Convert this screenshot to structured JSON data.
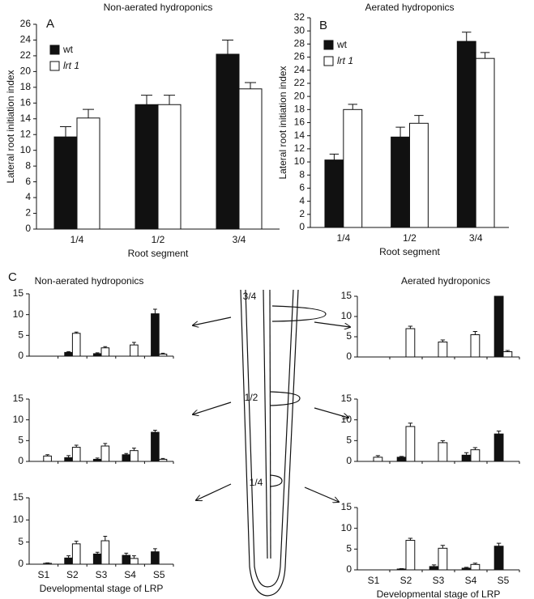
{
  "chart_data": [
    {
      "type": "bar",
      "panel": "A",
      "title": "Non-aerated hydroponics",
      "y_label": "Lateral root initiation index",
      "x_label": "Root segment",
      "categories": [
        "1/4",
        "1/2",
        "3/4"
      ],
      "ylim": [
        0,
        26
      ],
      "yticks": [
        0,
        2,
        4,
        6,
        8,
        10,
        12,
        14,
        16,
        18,
        20,
        22,
        24,
        26
      ],
      "legend": "upper left",
      "series": [
        {
          "name": "wt",
          "color": "#111111",
          "values": [
            11.7,
            15.8,
            22.2
          ],
          "errors": [
            1.3,
            1.2,
            1.8
          ]
        },
        {
          "name": "lrt 1",
          "color": "#ffffff",
          "values": [
            14.1,
            15.8,
            17.8
          ],
          "errors": [
            1.1,
            1.2,
            0.8
          ]
        }
      ]
    },
    {
      "type": "bar",
      "panel": "B",
      "title": "Aerated hydroponics",
      "y_label": "Lateral root initiation index",
      "x_label": "Root segment",
      "categories": [
        "1/4",
        "1/2",
        "3/4"
      ],
      "ylim": [
        0,
        32
      ],
      "yticks": [
        0,
        2,
        4,
        6,
        8,
        10,
        12,
        14,
        16,
        18,
        20,
        22,
        24,
        26,
        28,
        30,
        32
      ],
      "legend": "upper left",
      "series": [
        {
          "name": "wt",
          "color": "#111111",
          "values": [
            10.3,
            13.8,
            28.4
          ],
          "errors": [
            0.9,
            1.5,
            1.4
          ]
        },
        {
          "name": "lrt 1",
          "color": "#ffffff",
          "values": [
            18.0,
            15.9,
            25.8
          ],
          "errors": [
            0.8,
            1.2,
            0.9
          ]
        }
      ]
    },
    {
      "type": "bar",
      "panel": "C",
      "title": "Non-aerated hydroponics",
      "categories": [
        null,
        null,
        null,
        null,
        null
      ],
      "ylim": [
        0,
        15
      ],
      "yticks": [
        0,
        5,
        10,
        15
      ],
      "series": [
        {
          "color": "#111111",
          "values": [
            0,
            0.9,
            0.6,
            0,
            10.2
          ],
          "errors": [
            0,
            0.2,
            0.2,
            0,
            1.1
          ]
        },
        {
          "color": "#ffffff",
          "values": [
            0,
            5.5,
            2.0,
            2.7,
            0.5
          ],
          "errors": [
            0,
            0.3,
            0.3,
            0.6,
            0.2
          ]
        }
      ]
    },
    {
      "type": "bar",
      "categories": [
        null,
        null,
        null,
        null,
        null
      ],
      "ylim": [
        0,
        15
      ],
      "yticks": [
        0,
        5,
        10,
        15
      ],
      "series": [
        {
          "color": "#111111",
          "values": [
            0,
            0.9,
            0.5,
            1.6,
            7.0
          ],
          "errors": [
            0,
            0.5,
            0.3,
            0.3,
            0.5
          ]
        },
        {
          "color": "#ffffff",
          "values": [
            1.3,
            3.4,
            3.7,
            2.6,
            0.5
          ],
          "errors": [
            0.3,
            0.5,
            0.6,
            0.6,
            0.2
          ]
        }
      ]
    },
    {
      "type": "bar",
      "x_label": "Developmental stage of LRP",
      "categories": [
        "S1",
        "S2",
        "S3",
        "S4",
        "S5"
      ],
      "ylim": [
        0,
        15
      ],
      "yticks": [
        0,
        5,
        10,
        15
      ],
      "series": [
        {
          "color": "#111111",
          "values": [
            0,
            1.4,
            2.3,
            2.0,
            2.8
          ],
          "errors": [
            0,
            0.5,
            0.4,
            0.5,
            0.7
          ]
        },
        {
          "color": "#ffffff",
          "values": [
            0.2,
            4.6,
            5.3,
            1.3,
            0
          ],
          "errors": [
            0.1,
            0.6,
            1.0,
            0.6,
            0
          ]
        }
      ]
    },
    {
      "type": "bar",
      "title": "Aerated hydroponics",
      "categories": [
        null,
        null,
        null,
        null,
        null
      ],
      "ylim": [
        0,
        15
      ],
      "yticks": [
        0,
        5,
        10,
        15
      ],
      "series": [
        {
          "color": "#111111",
          "values": [
            0,
            0,
            0,
            0,
            15
          ],
          "errors": [
            0,
            0,
            0,
            0,
            0
          ]
        },
        {
          "color": "#ffffff",
          "values": [
            0,
            7.0,
            3.7,
            5.5,
            1.3
          ],
          "errors": [
            0,
            0.6,
            0.5,
            0.8,
            0.3
          ]
        }
      ]
    },
    {
      "type": "bar",
      "categories": [
        null,
        null,
        null,
        null,
        null
      ],
      "ylim": [
        0,
        15
      ],
      "yticks": [
        0,
        5,
        10,
        15
      ],
      "series": [
        {
          "color": "#111111",
          "values": [
            0,
            1.0,
            0,
            1.5,
            6.6
          ],
          "errors": [
            0,
            0.2,
            0,
            0.6,
            0.7
          ]
        },
        {
          "color": "#ffffff",
          "values": [
            1.0,
            8.4,
            4.5,
            2.8,
            0
          ],
          "errors": [
            0.4,
            0.8,
            0.5,
            0.5,
            0
          ]
        }
      ]
    },
    {
      "type": "bar",
      "x_label": "Developmental stage of LRP",
      "categories": [
        "S1",
        "S2",
        "S3",
        "S4",
        "S5"
      ],
      "ylim": [
        0,
        15
      ],
      "yticks": [
        0,
        5,
        10,
        15
      ],
      "series": [
        {
          "color": "#111111",
          "values": [
            0,
            0.2,
            0.8,
            0.4,
            5.7
          ],
          "errors": [
            0,
            0.1,
            0.4,
            0.2,
            0.7
          ]
        },
        {
          "color": "#ffffff",
          "values": [
            0,
            7.1,
            5.2,
            1.3,
            0
          ],
          "errors": [
            0,
            0.5,
            0.7,
            0.3,
            0
          ]
        }
      ]
    }
  ],
  "diagram": {
    "labels": [
      "3/4",
      "1/2",
      "1/4"
    ]
  }
}
